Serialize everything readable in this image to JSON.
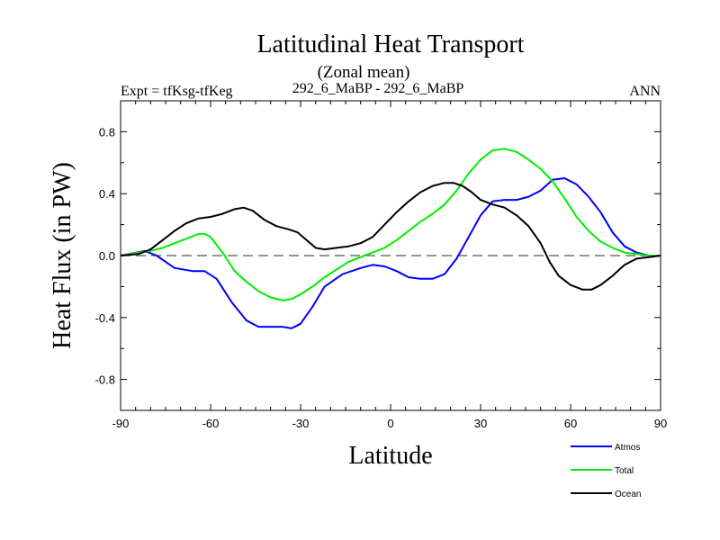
{
  "chart_data": {
    "type": "line",
    "title": "Latitudinal Heat Transport",
    "subtitle": "(Zonal mean)",
    "left_label": "Expt = tfKsg-tfKeg",
    "center_label": "292_6_MaBP - 292_6_MaBP",
    "right_label": "ANN",
    "xlabel": "Latitude",
    "ylabel": "Heat Flux (in PW)",
    "xlim": [
      -90,
      90
    ],
    "ylim": [
      -1,
      1
    ],
    "xticks": [
      -90,
      -60,
      -30,
      0,
      30,
      60,
      90
    ],
    "xtick_labels": [
      "-90",
      "-60",
      "-30",
      "0",
      "30",
      "60",
      "90"
    ],
    "yticks": [
      -0.8,
      -0.4,
      0.0,
      0.4,
      0.8
    ],
    "ytick_labels": [
      "-0.8",
      "-0.4",
      "0.0",
      "0.4",
      "0.8"
    ],
    "zero_line": true,
    "grid": false,
    "legend_position": "bottom-right",
    "series": [
      {
        "name": "Atmos",
        "color": "#0000ff",
        "x": [
          -90,
          -82,
          -78,
          -72,
          -66,
          -62,
          -58,
          -53,
          -48,
          -44,
          -40,
          -36,
          -33,
          -30,
          -26,
          -22,
          -16,
          -10,
          -6,
          -2,
          2,
          6,
          10,
          14,
          18,
          22,
          26,
          30,
          34,
          38,
          42,
          46,
          50,
          54,
          58,
          62,
          66,
          70,
          74,
          78,
          82,
          86,
          90
        ],
        "y": [
          0.0,
          0.03,
          0.0,
          -0.08,
          -0.1,
          -0.1,
          -0.15,
          -0.3,
          -0.42,
          -0.46,
          -0.46,
          -0.46,
          -0.47,
          -0.44,
          -0.33,
          -0.2,
          -0.12,
          -0.08,
          -0.06,
          -0.07,
          -0.1,
          -0.14,
          -0.15,
          -0.15,
          -0.12,
          -0.02,
          0.12,
          0.26,
          0.35,
          0.36,
          0.36,
          0.38,
          0.42,
          0.49,
          0.5,
          0.46,
          0.38,
          0.28,
          0.15,
          0.06,
          0.02,
          0.0,
          0.0
        ]
      },
      {
        "name": "Total",
        "color": "#00ee00",
        "x": [
          -90,
          -84,
          -80,
          -76,
          -72,
          -68,
          -64,
          -62,
          -60,
          -56,
          -52,
          -48,
          -44,
          -40,
          -36,
          -33,
          -30,
          -26,
          -22,
          -18,
          -14,
          -10,
          -6,
          -2,
          2,
          6,
          10,
          14,
          18,
          22,
          26,
          30,
          34,
          38,
          42,
          46,
          50,
          54,
          58,
          62,
          66,
          70,
          74,
          78,
          82,
          86,
          90
        ],
        "y": [
          0.0,
          0.02,
          0.03,
          0.05,
          0.08,
          0.11,
          0.14,
          0.14,
          0.12,
          0.02,
          -0.1,
          -0.17,
          -0.23,
          -0.27,
          -0.29,
          -0.28,
          -0.25,
          -0.2,
          -0.14,
          -0.09,
          -0.04,
          -0.01,
          0.02,
          0.05,
          0.1,
          0.16,
          0.22,
          0.27,
          0.33,
          0.42,
          0.53,
          0.62,
          0.68,
          0.69,
          0.67,
          0.62,
          0.56,
          0.48,
          0.37,
          0.25,
          0.16,
          0.09,
          0.05,
          0.02,
          0.01,
          0.0,
          0.0
        ]
      },
      {
        "name": "Ocean",
        "color": "#000000",
        "x": [
          -90,
          -84,
          -80,
          -76,
          -72,
          -68,
          -64,
          -60,
          -56,
          -52,
          -49,
          -46,
          -42,
          -38,
          -34,
          -31,
          -28,
          -25,
          -22,
          -18,
          -14,
          -10,
          -6,
          -2,
          2,
          6,
          10,
          14,
          18,
          21,
          24,
          27,
          30,
          34,
          38,
          42,
          46,
          50,
          53,
          56,
          60,
          64,
          67,
          70,
          74,
          78,
          82,
          86,
          90
        ],
        "y": [
          0.0,
          0.01,
          0.04,
          0.1,
          0.16,
          0.21,
          0.24,
          0.25,
          0.27,
          0.3,
          0.31,
          0.29,
          0.23,
          0.19,
          0.17,
          0.15,
          0.1,
          0.05,
          0.04,
          0.05,
          0.06,
          0.08,
          0.12,
          0.2,
          0.28,
          0.35,
          0.41,
          0.45,
          0.47,
          0.47,
          0.45,
          0.41,
          0.36,
          0.33,
          0.31,
          0.26,
          0.19,
          0.08,
          -0.04,
          -0.13,
          -0.19,
          -0.22,
          -0.22,
          -0.19,
          -0.13,
          -0.06,
          -0.02,
          -0.01,
          0.0
        ]
      }
    ]
  }
}
